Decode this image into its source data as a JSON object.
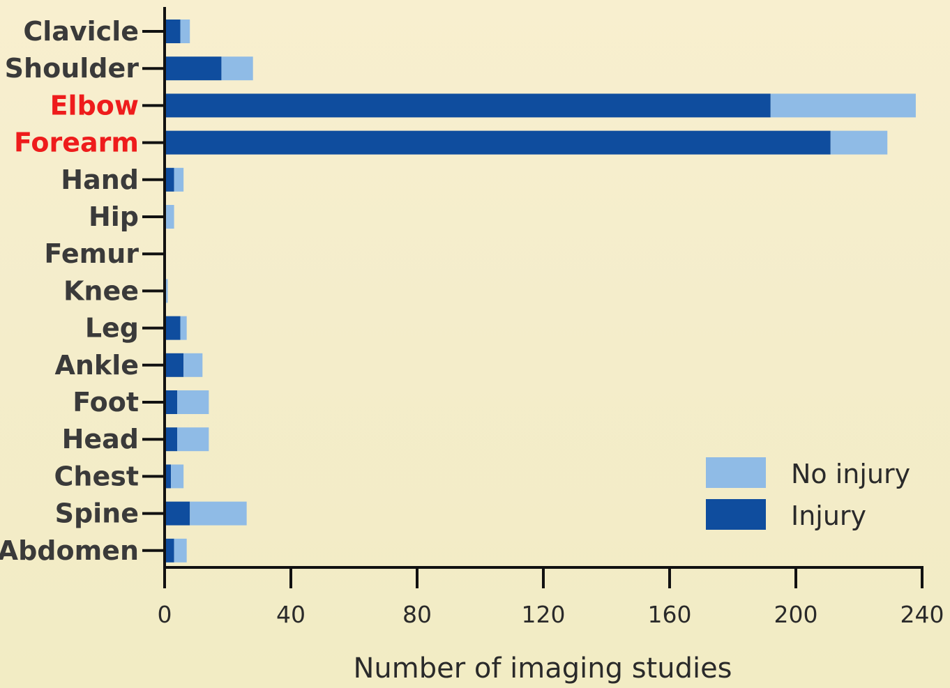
{
  "colors": {
    "injury": "#0f4d9e",
    "no_injury": "#8fbbe6",
    "axis": "#111111",
    "label": "#3a3a3a",
    "highlight": "#ee1c1c"
  },
  "chart_data": {
    "type": "bar",
    "orientation": "horizontal",
    "stacked": true,
    "categories": [
      "Clavicle",
      "Shoulder",
      "Elbow",
      "Forearm",
      "Hand",
      "Hip",
      "Femur",
      "Knee",
      "Leg",
      "Ankle",
      "Foot",
      "Head",
      "Chest",
      "Spine",
      "Abdomen"
    ],
    "highlighted_categories": [
      "Elbow",
      "Forearm"
    ],
    "series": [
      {
        "name": "Injury",
        "color": "#0f4d9e",
        "values": [
          5,
          18,
          192,
          211,
          3,
          0,
          0,
          0,
          5,
          6,
          4,
          4,
          2,
          8,
          3
        ]
      },
      {
        "name": "No injury",
        "color": "#8fbbe6",
        "values": [
          3,
          10,
          46,
          18,
          3,
          3,
          0,
          1,
          2,
          6,
          10,
          10,
          4,
          18,
          4
        ]
      }
    ],
    "xlabel": "Number of imaging studies",
    "ylabel": "",
    "xlim": [
      0,
      240
    ],
    "xticks": [
      "0",
      "40",
      "80",
      "120",
      "160",
      "200",
      "240"
    ],
    "legend": {
      "position": "bottom-right",
      "entries": [
        "No injury",
        "Injury"
      ]
    },
    "grid": false
  }
}
